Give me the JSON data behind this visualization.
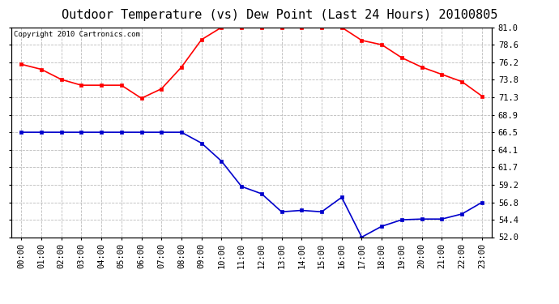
{
  "title": "Outdoor Temperature (vs) Dew Point (Last 24 Hours) 20100805",
  "copyright_text": "Copyright 2010 Cartronics.com",
  "x_labels": [
    "00:00",
    "01:00",
    "02:00",
    "03:00",
    "04:00",
    "05:00",
    "06:00",
    "07:00",
    "08:00",
    "09:00",
    "10:00",
    "11:00",
    "12:00",
    "13:00",
    "14:00",
    "15:00",
    "16:00",
    "17:00",
    "18:00",
    "19:00",
    "20:00",
    "21:00",
    "22:00",
    "23:00"
  ],
  "temp_data": [
    75.9,
    75.2,
    73.8,
    73.0,
    73.0,
    73.0,
    71.2,
    72.5,
    75.5,
    79.3,
    81.0,
    81.0,
    81.0,
    81.0,
    81.0,
    81.0,
    81.0,
    79.2,
    78.6,
    76.8,
    75.5,
    74.5,
    73.5,
    71.5
  ],
  "dew_data": [
    66.5,
    66.5,
    66.5,
    66.5,
    66.5,
    66.5,
    66.5,
    66.5,
    66.5,
    65.0,
    62.5,
    59.0,
    58.0,
    55.5,
    55.7,
    55.5,
    57.5,
    52.0,
    53.5,
    54.4,
    54.5,
    54.5,
    55.2,
    56.8
  ],
  "temp_color": "#ff0000",
  "dew_color": "#0000cc",
  "marker": "s",
  "marker_size": 3,
  "line_width": 1.2,
  "ylim_min": 52.0,
  "ylim_max": 81.0,
  "yticks": [
    52.0,
    54.4,
    56.8,
    59.2,
    61.7,
    64.1,
    66.5,
    68.9,
    71.3,
    73.8,
    76.2,
    78.6,
    81.0
  ],
  "bg_color": "#ffffff",
  "plot_bg_color": "#ffffff",
  "grid_color": "#bbbbbb",
  "title_fontsize": 11,
  "tick_fontsize": 7.5,
  "copyright_fontsize": 6.5
}
